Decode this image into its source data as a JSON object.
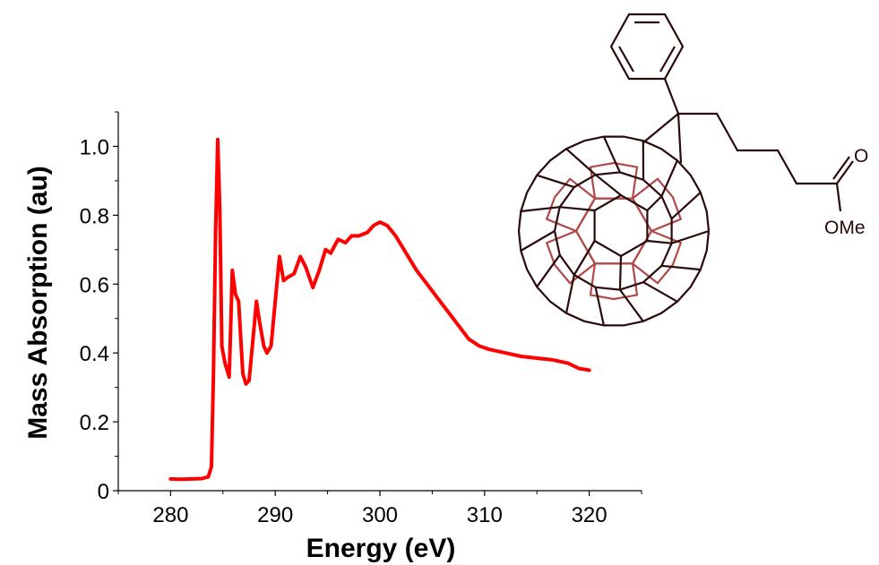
{
  "chart_data": {
    "type": "line",
    "title": "",
    "xlabel": "Energy (eV)",
    "ylabel": "Mass Absorption (au)",
    "xlim": [
      275,
      325
    ],
    "ylim": [
      0,
      1.1
    ],
    "x_ticks": [
      "280",
      "290",
      "300",
      "310",
      "320"
    ],
    "x_tick_values": [
      280,
      290,
      300,
      310,
      320
    ],
    "y_ticks": [
      "0",
      "0.2",
      "0.4",
      "0.6",
      "0.8",
      "1.0"
    ],
    "y_tick_values": [
      0,
      0.2,
      0.4,
      0.6,
      0.8,
      1.0
    ],
    "grid": false,
    "legend": "none",
    "series": [
      {
        "color": "#ff0000",
        "x": [
          280.0,
          281.0,
          282.0,
          283.0,
          283.6,
          283.9,
          284.1,
          284.3,
          284.5,
          284.7,
          284.9,
          285.2,
          285.6,
          285.9,
          286.2,
          286.5,
          286.9,
          287.2,
          287.5,
          287.9,
          288.2,
          288.5,
          288.9,
          289.2,
          289.6,
          290.0,
          290.4,
          290.8,
          291.2,
          291.8,
          292.4,
          292.9,
          293.6,
          294.2,
          294.8,
          295.3,
          296.0,
          296.7,
          297.3,
          298.0,
          298.8,
          299.4,
          300.0,
          300.7,
          301.5,
          302.5,
          303.5,
          304.5,
          305.5,
          306.5,
          307.5,
          308.5,
          309.5,
          310.5,
          312.0,
          313.5,
          315.0,
          316.5,
          318.0,
          319.0,
          320.0
        ],
        "y": [
          0.034,
          0.033,
          0.034,
          0.035,
          0.04,
          0.07,
          0.35,
          0.75,
          1.02,
          0.82,
          0.42,
          0.37,
          0.33,
          0.64,
          0.57,
          0.55,
          0.34,
          0.31,
          0.32,
          0.45,
          0.55,
          0.49,
          0.42,
          0.4,
          0.42,
          0.55,
          0.68,
          0.61,
          0.62,
          0.63,
          0.68,
          0.65,
          0.59,
          0.64,
          0.7,
          0.69,
          0.73,
          0.72,
          0.74,
          0.74,
          0.75,
          0.77,
          0.78,
          0.77,
          0.74,
          0.69,
          0.64,
          0.6,
          0.56,
          0.52,
          0.48,
          0.44,
          0.42,
          0.41,
          0.4,
          0.39,
          0.385,
          0.38,
          0.37,
          0.355,
          0.35
        ]
      }
    ]
  },
  "molecule": {
    "labels": [
      "O",
      "OMe"
    ]
  },
  "colors": {
    "curve": "#ff0000",
    "molecule_front": "#2a0a0a",
    "molecule_back": "#b04848"
  }
}
